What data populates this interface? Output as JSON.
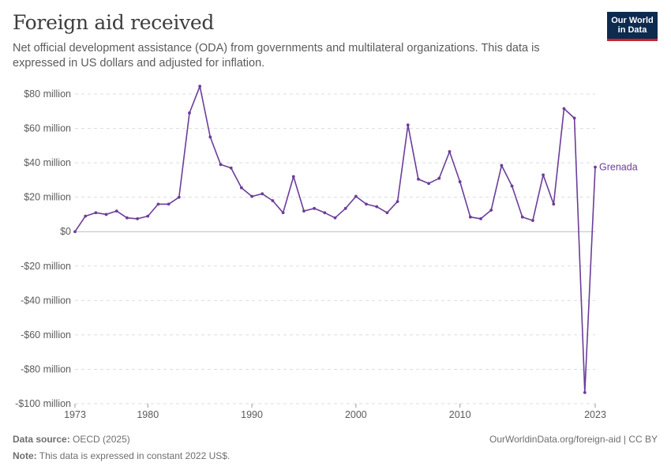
{
  "header": {
    "title": "Foreign aid received",
    "subtitle": "Net official development assistance (ODA) from governments and multilateral organizations. This data is expressed in US dollars and adjusted for inflation.",
    "logo_line1": "Our World",
    "logo_line2": "in Data"
  },
  "footer": {
    "source_label": "Data source:",
    "source_value": "OECD (2025)",
    "note_label": "Note:",
    "note_value": "This data is expressed in constant 2022 US$.",
    "attribution": "OurWorldinData.org/foreign-aid | CC BY"
  },
  "colors": {
    "series": "#6b3d9a",
    "grid": "#dddddd",
    "zero_line": "#bbbbbb",
    "text": "#5b5b5b"
  },
  "chart_data": {
    "type": "line",
    "title": "Foreign aid received",
    "xlabel": "",
    "ylabel": "",
    "xlim": [
      1973,
      2023
    ],
    "ylim": [
      -100,
      80
    ],
    "y_unit": "million US$",
    "x_ticks": [
      1973,
      1980,
      1990,
      2000,
      2010,
      2023
    ],
    "y_ticks": [
      {
        "value": 80,
        "label": "$80 million"
      },
      {
        "value": 60,
        "label": "$60 million"
      },
      {
        "value": 40,
        "label": "$40 million"
      },
      {
        "value": 20,
        "label": "$20 million"
      },
      {
        "value": 0,
        "label": "$0"
      },
      {
        "value": -20,
        "label": "-$20 million"
      },
      {
        "value": -40,
        "label": "-$40 million"
      },
      {
        "value": -60,
        "label": "-$60 million"
      },
      {
        "value": -80,
        "label": "-$80 million"
      },
      {
        "value": -100,
        "label": "-$100 million"
      }
    ],
    "grid": true,
    "series": [
      {
        "name": "Grenada",
        "x": [
          1973,
          1974,
          1975,
          1976,
          1977,
          1978,
          1979,
          1980,
          1981,
          1982,
          1983,
          1984,
          1985,
          1986,
          1987,
          1988,
          1989,
          1990,
          1991,
          1992,
          1993,
          1994,
          1995,
          1996,
          1997,
          1998,
          1999,
          2000,
          2001,
          2002,
          2003,
          2004,
          2005,
          2006,
          2007,
          2008,
          2009,
          2010,
          2011,
          2012,
          2013,
          2014,
          2015,
          2016,
          2017,
          2018,
          2019,
          2020,
          2021,
          2022,
          2023
        ],
        "values": [
          0,
          9,
          11,
          10,
          12,
          8,
          7.5,
          9,
          16,
          16,
          20,
          69,
          84.5,
          55,
          39,
          37,
          25.5,
          20.5,
          22,
          18,
          11,
          32,
          12,
          13.5,
          11,
          8,
          13.5,
          20.5,
          16,
          14.5,
          11,
          17.5,
          62,
          30.5,
          28,
          31,
          46.5,
          29,
          8.5,
          7.5,
          12.5,
          38.5,
          26.5,
          8.5,
          6.5,
          33,
          16,
          71.5,
          66,
          -93.5,
          37.5
        ]
      }
    ]
  }
}
